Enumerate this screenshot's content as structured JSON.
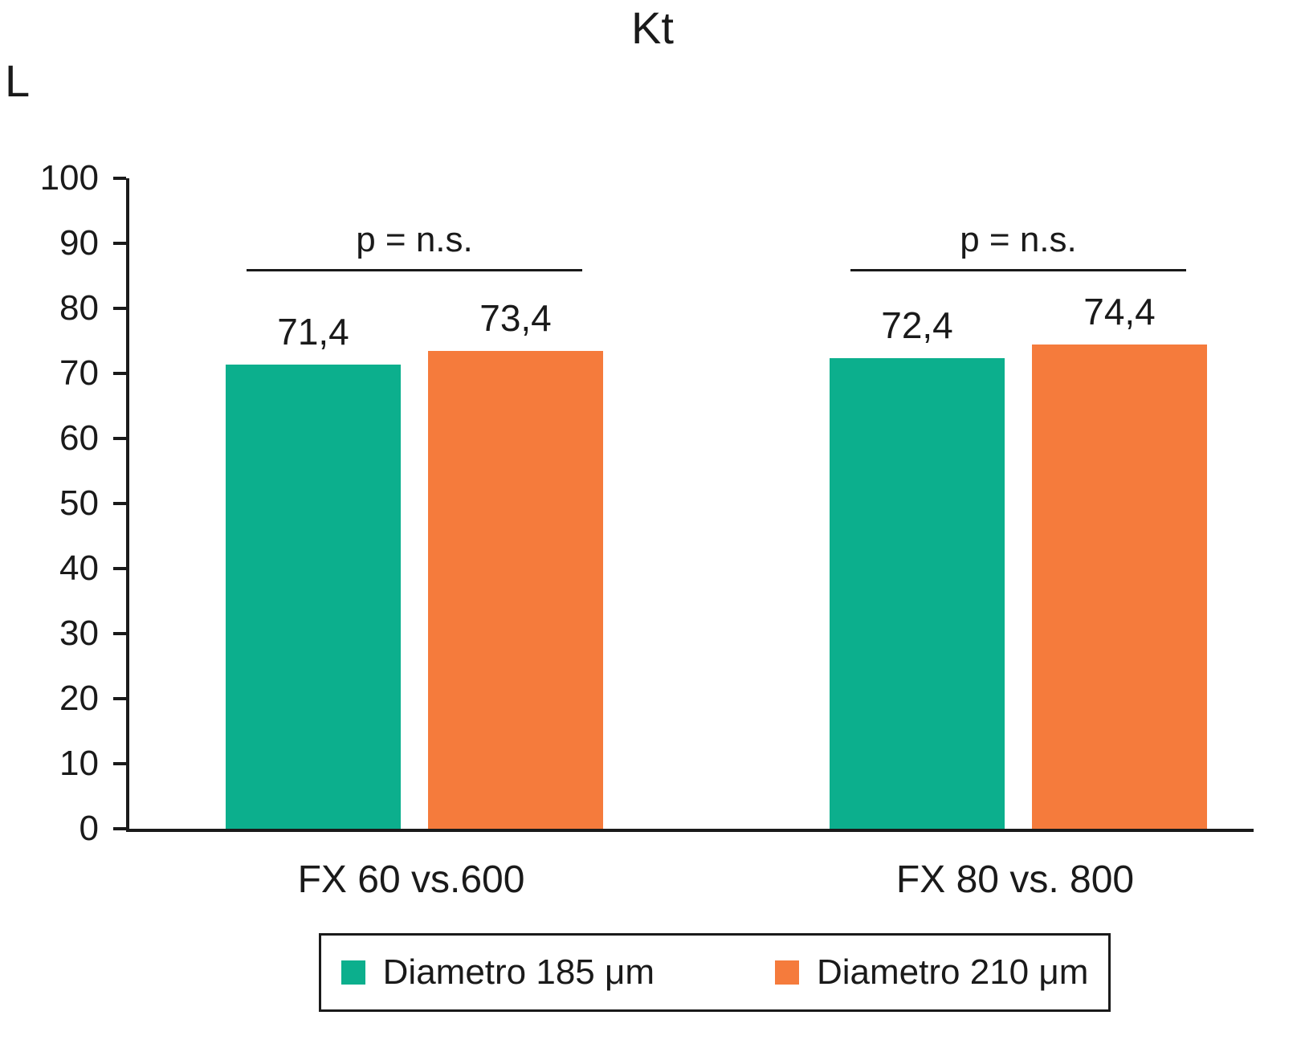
{
  "title": "Kt",
  "unit_label": "L",
  "chart_data": {
    "type": "bar",
    "title": "Kt",
    "ylabel": "L",
    "xlabel": "",
    "ylim": [
      0,
      100
    ],
    "ytick_step": 10,
    "grid": false,
    "legend_position": "bottom",
    "categories": [
      "FX 60 vs.600",
      "FX 80 vs. 800"
    ],
    "series": [
      {
        "name": "Diametro 185 μm",
        "color": "#0caf8d",
        "values": [
          71.4,
          72.4
        ]
      },
      {
        "name": "Diametro 210 μm",
        "color": "#f57b3c",
        "values": [
          73.4,
          74.4
        ]
      }
    ],
    "value_labels": [
      [
        "71,4",
        "73,4"
      ],
      [
        "72,4",
        "74,4"
      ]
    ],
    "annotations": [
      "p = n.s.",
      "p = n.s."
    ]
  }
}
